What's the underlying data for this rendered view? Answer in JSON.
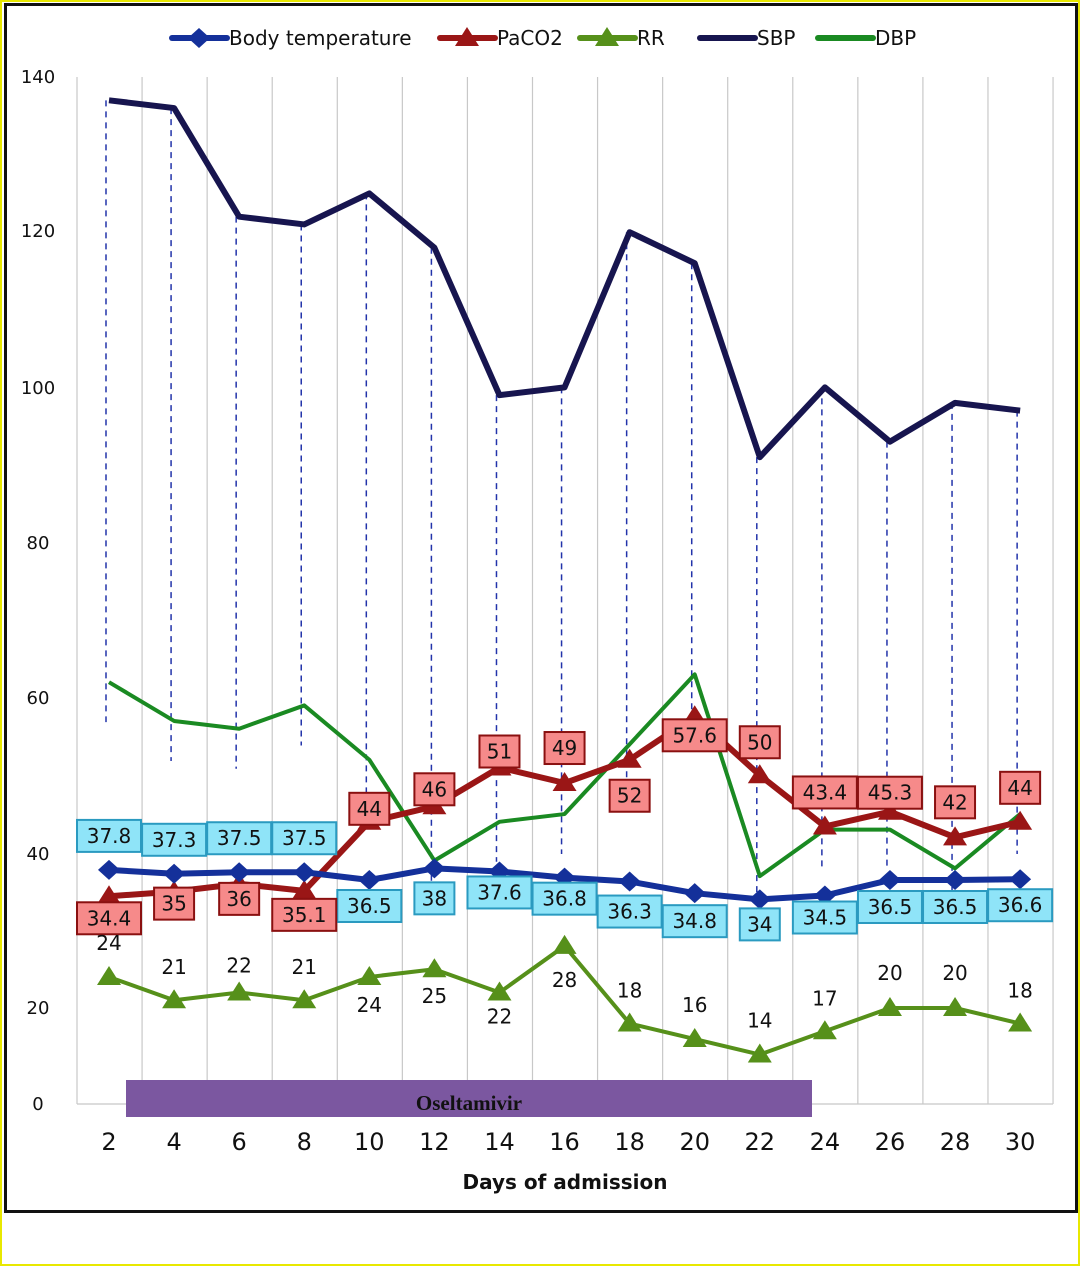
{
  "chart_data": {
    "type": "line",
    "title": "",
    "xlabel": "Days of admission",
    "ylabel": "",
    "x": [
      2,
      4,
      6,
      8,
      10,
      12,
      14,
      16,
      18,
      20,
      22,
      24,
      26,
      28,
      30
    ],
    "x_tick_labels": [
      "2",
      "4",
      "6",
      "8",
      "10",
      "12",
      "14",
      "16",
      "18",
      "20",
      "22",
      "24",
      "26",
      "28",
      "30"
    ],
    "y_tick_labels": [
      "0",
      "20",
      "40",
      "60",
      "80",
      "100",
      "120",
      "140"
    ],
    "ylim": [
      8,
      140
    ],
    "grid": "vertical",
    "legend_placement": "top",
    "series": [
      {
        "name": "Body temperature",
        "color": "#14309a",
        "marker": "diamond",
        "labels_shown": true,
        "values": [
          37.8,
          37.3,
          37.5,
          37.5,
          36.5,
          38,
          37.6,
          36.8,
          36.3,
          34.8,
          34,
          34.5,
          36.5,
          36.5,
          36.6
        ]
      },
      {
        "name": "PaCO2",
        "color": "#9a1616",
        "marker": "triangle",
        "labels_shown": true,
        "values": [
          34.4,
          35,
          36,
          35.1,
          44,
          46,
          51,
          49,
          52,
          57.6,
          50,
          43.4,
          45.3,
          42,
          44
        ]
      },
      {
        "name": "RR",
        "color": "#56901a",
        "marker": "triangle",
        "labels_shown": true,
        "values": [
          24,
          21,
          22,
          21,
          24,
          25,
          22,
          28,
          18,
          16,
          14,
          17,
          20,
          20,
          18
        ]
      },
      {
        "name": "SBP",
        "color": "#17154f",
        "marker": "none",
        "labels_shown": false,
        "values": [
          137,
          136,
          122,
          121,
          125,
          118,
          99,
          100,
          120,
          116,
          91,
          100,
          93,
          98,
          97
        ]
      },
      {
        "name": "DBP",
        "color": "#1a8a22",
        "marker": "none",
        "labels_shown": false,
        "values": [
          62,
          57,
          56,
          59,
          52,
          39,
          44,
          45,
          54,
          63,
          37,
          43,
          43,
          38,
          45
        ]
      }
    ],
    "annotations": [
      {
        "text": "Oseltamivir",
        "type": "treatment-bar",
        "x_start": 2.5,
        "x_end": 23.5,
        "color": "#7b57a0"
      }
    ]
  }
}
